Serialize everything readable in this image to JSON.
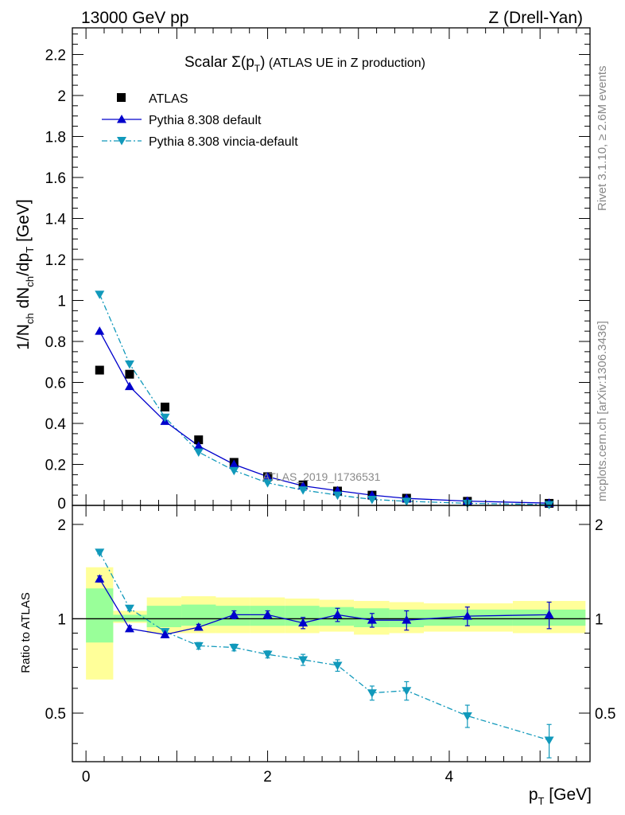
{
  "header": {
    "left": "13000 GeV pp",
    "right": "Z (Drell-Yan)"
  },
  "side_labels": {
    "rivet": "Rivet 3.1.10, ≥ 2.6M events",
    "mcplots": "mcplots.cern.ch [arXiv:1306.3436]"
  },
  "watermark": "ATLAS_2019_I1736531",
  "colors": {
    "data": "#000000",
    "pythia_default": "#0000cc",
    "vincia": "#1199bb",
    "band_inner": "#99ff99",
    "band_outer": "#ffff99"
  },
  "chart_data": [
    {
      "type": "scatter",
      "panel": "main",
      "title": "Scalar Σ(p_T) (ATLAS UE in Z production)",
      "title_parts": {
        "lead": "Scalar ",
        "sigma": "Σ(p",
        "sub": "T",
        "close": ")",
        "rest": " (ATLAS UE in Z production)"
      },
      "ylabel": "1/N_ch dN_ch/dp_T [GeV]",
      "ylabel_parts": {
        "a": "1/N",
        "ch1": "ch",
        "b": " dN",
        "ch2": "ch",
        "c": "/dp",
        "T": "T",
        "d": " [GeV]"
      },
      "xlim": [
        -0.15,
        5.55
      ],
      "ylim": [
        0,
        2.33
      ],
      "yticks": [
        0.2,
        0.4,
        0.6,
        0.8,
        1,
        1.2,
        1.4,
        1.6,
        1.8,
        2,
        2.2
      ],
      "ytick_labels": [
        "0.2",
        "0.4",
        "0.6",
        "0.8",
        "1",
        "1.2",
        "1.4",
        "1.6",
        "1.8",
        "2",
        "2.2"
      ],
      "bottom_tick_label": "0",
      "legend_position": "top-left",
      "x": [
        0.15,
        0.48,
        0.87,
        1.24,
        1.63,
        2.0,
        2.39,
        2.77,
        3.15,
        3.53,
        4.2,
        5.1
      ],
      "series": [
        {
          "name": "ATLAS",
          "style": "marker-square",
          "values": [
            0.66,
            0.64,
            0.48,
            0.32,
            0.21,
            0.14,
            0.1,
            0.07,
            0.05,
            0.035,
            0.02,
            0.01
          ]
        },
        {
          "name": "Pythia 8.308 default",
          "style": "line-triangle-up",
          "values": [
            0.85,
            0.58,
            0.41,
            0.29,
            0.2,
            0.14,
            0.095,
            0.072,
            0.05,
            0.034,
            0.021,
            0.011
          ]
        },
        {
          "name": "Pythia 8.308 vincia-default",
          "style": "dashdot-triangle-down",
          "values": [
            1.03,
            0.69,
            0.43,
            0.26,
            0.17,
            0.11,
            0.075,
            0.05,
            0.029,
            0.02,
            0.01,
            0.004
          ]
        }
      ]
    },
    {
      "type": "line",
      "panel": "ratio",
      "ylabel": "Ratio to ATLAS",
      "xlabel": "p_T [GeV]",
      "xlabel_parts": {
        "p": "p",
        "T": "T",
        "unit": " [GeV]"
      },
      "xlim": [
        -0.15,
        5.55
      ],
      "ylim": [
        0.35,
        2.3
      ],
      "log_y": true,
      "yticks": [
        0.5,
        1,
        2
      ],
      "ytick_labels": [
        "0.5",
        "1",
        "2"
      ],
      "xticks": [
        0,
        2,
        4
      ],
      "xtick_labels": [
        "0",
        "2",
        "4"
      ],
      "bins": [
        {
          "lo": 0.0,
          "hi": 0.3,
          "inner": [
            0.84,
            1.25
          ],
          "outer": [
            0.64,
            1.46
          ]
        },
        {
          "lo": 0.3,
          "hi": 0.67,
          "inner": [
            0.98,
            1.03
          ],
          "outer": [
            0.97,
            1.06
          ]
        },
        {
          "lo": 0.67,
          "hi": 1.05,
          "inner": [
            0.94,
            1.1
          ],
          "outer": [
            0.9,
            1.17
          ]
        },
        {
          "lo": 1.05,
          "hi": 1.43,
          "inner": [
            0.95,
            1.11
          ],
          "outer": [
            0.9,
            1.18
          ]
        },
        {
          "lo": 1.43,
          "hi": 1.81,
          "inner": [
            0.95,
            1.1
          ],
          "outer": [
            0.9,
            1.17
          ]
        },
        {
          "lo": 1.81,
          "hi": 2.19,
          "inner": [
            0.95,
            1.1
          ],
          "outer": [
            0.9,
            1.17
          ]
        },
        {
          "lo": 2.19,
          "hi": 2.57,
          "inner": [
            0.95,
            1.1
          ],
          "outer": [
            0.9,
            1.16
          ]
        },
        {
          "lo": 2.57,
          "hi": 2.95,
          "inner": [
            0.95,
            1.09
          ],
          "outer": [
            0.91,
            1.15
          ]
        },
        {
          "lo": 2.95,
          "hi": 3.34,
          "inner": [
            0.94,
            1.08
          ],
          "outer": [
            0.89,
            1.14
          ]
        },
        {
          "lo": 3.34,
          "hi": 3.72,
          "inner": [
            0.94,
            1.07
          ],
          "outer": [
            0.9,
            1.13
          ]
        },
        {
          "lo": 3.72,
          "hi": 4.7,
          "inner": [
            0.95,
            1.07
          ],
          "outer": [
            0.91,
            1.12
          ]
        },
        {
          "lo": 4.7,
          "hi": 5.5,
          "inner": [
            0.95,
            1.07
          ],
          "outer": [
            0.9,
            1.14
          ]
        }
      ],
      "x": [
        0.15,
        0.48,
        0.87,
        1.24,
        1.63,
        2.0,
        2.39,
        2.77,
        3.15,
        3.53,
        4.2,
        5.1
      ],
      "series": [
        {
          "name": "Pythia 8.308 default",
          "values": [
            1.34,
            0.93,
            0.89,
            0.94,
            1.03,
            1.03,
            0.97,
            1.03,
            0.99,
            0.99,
            1.02,
            1.03
          ],
          "err": [
            0.03,
            0.02,
            0.02,
            0.02,
            0.03,
            0.03,
            0.04,
            0.05,
            0.05,
            0.07,
            0.07,
            0.1
          ]
        },
        {
          "name": "Pythia 8.308 vincia-default",
          "values": [
            1.63,
            1.08,
            0.91,
            0.82,
            0.81,
            0.77,
            0.74,
            0.71,
            0.58,
            0.59,
            0.49,
            0.41
          ],
          "err": [
            0.02,
            0.02,
            0.02,
            0.02,
            0.02,
            0.02,
            0.03,
            0.03,
            0.03,
            0.04,
            0.04,
            0.05
          ]
        }
      ]
    }
  ]
}
